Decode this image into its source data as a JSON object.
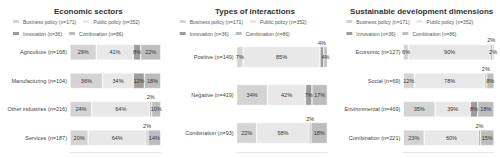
{
  "chart_data": [
    {
      "type": "bar",
      "title": "Economic sectors",
      "orientation": "horizontal",
      "stacked": true,
      "data_labels": true,
      "tick_labels": "y",
      "legend": "top",
      "categories": [
        "Agriculture (n=168)",
        "Manufacturing (n=104)",
        "Other industries (n=216)",
        "Services (n=187)"
      ],
      "xlim": [
        0,
        100
      ],
      "series": [
        {
          "name": "Business policy (n=171)",
          "color": "#d4d4d4",
          "values": [
            29,
            36,
            24,
            20
          ],
          "value_labels": [
            "29%",
            "36%",
            "24%",
            "20%"
          ]
        },
        {
          "name": "Public policy (n=352)",
          "color": "#e8e8e8",
          "values": [
            41,
            34,
            64,
            64
          ],
          "value_labels": [
            "41%",
            "34%",
            "64%",
            "64%"
          ]
        },
        {
          "name": "Innovation (n=36)",
          "color": "#9c9c9c",
          "values": [
            8,
            12,
            2,
            2
          ],
          "value_labels": [
            "8%",
            "12%",
            "2%",
            "2%"
          ]
        },
        {
          "name": "Combination (n=86)",
          "color": "#bdbdbd",
          "values": [
            22,
            18,
            10,
            14
          ],
          "value_labels": [
            "22%",
            "18%",
            "10%",
            "14%"
          ]
        }
      ]
    },
    {
      "type": "bar",
      "title": "Types of interactions",
      "orientation": "horizontal",
      "stacked": true,
      "data_labels": true,
      "tick_labels": "y",
      "legend": "top",
      "categories": [
        "Positive (n=149)",
        "Negative (n=419)",
        "Combination (n=93)"
      ],
      "xlim": [
        0,
        100
      ],
      "series": [
        {
          "name": "Business policy (n=171)",
          "color": "#d4d4d4",
          "values": [
            7,
            34,
            22
          ],
          "value_labels": [
            "7%",
            "34%",
            "22%"
          ]
        },
        {
          "name": "Public policy (n=352)",
          "color": "#e8e8e8",
          "values": [
            85,
            42,
            58
          ],
          "value_labels": [
            "85%",
            "42%",
            "58%"
          ]
        },
        {
          "name": "Innovation (n=36)",
          "color": "#9c9c9c",
          "values": [
            4,
            7,
            2
          ],
          "value_labels": [
            "4%",
            "7%",
            "2%"
          ]
        },
        {
          "name": "Combination (n=86)",
          "color": "#bdbdbd",
          "values": [
            4,
            17,
            18
          ],
          "value_labels": [
            "4%",
            "17%",
            "18%"
          ]
        }
      ]
    },
    {
      "type": "bar",
      "title": "Sustainable development dimensions",
      "orientation": "horizontal",
      "stacked": true,
      "data_labels": true,
      "tick_labels": "y",
      "legend": "top",
      "categories": [
        "Economic (n=127)",
        "Social (n=69)",
        "Environmental (n=469)",
        "Combination (n=221)"
      ],
      "xlim": [
        0,
        100
      ],
      "series": [
        {
          "name": "Business policy (n=171)",
          "color": "#d4d4d4",
          "values": [
            6,
            12,
            35,
            23
          ],
          "value_labels": [
            "6%",
            "12%",
            "35%",
            "23%"
          ]
        },
        {
          "name": "Public policy (n=352)",
          "color": "#e8e8e8",
          "values": [
            90,
            78,
            39,
            60
          ],
          "value_labels": [
            "90%",
            "78%",
            "39%",
            "60%"
          ]
        },
        {
          "name": "Innovation (n=36)",
          "color": "#9c9c9c",
          "values": [
            2,
            2,
            8,
            2
          ],
          "value_labels": [
            "2%",
            "2%",
            "8%",
            "2%"
          ]
        },
        {
          "name": "Combination (n=86)",
          "color": "#bdbdbd",
          "values": [
            2,
            8,
            18,
            15
          ],
          "value_labels": [
            "2%",
            "8%",
            "18%",
            "15%"
          ]
        }
      ]
    }
  ]
}
